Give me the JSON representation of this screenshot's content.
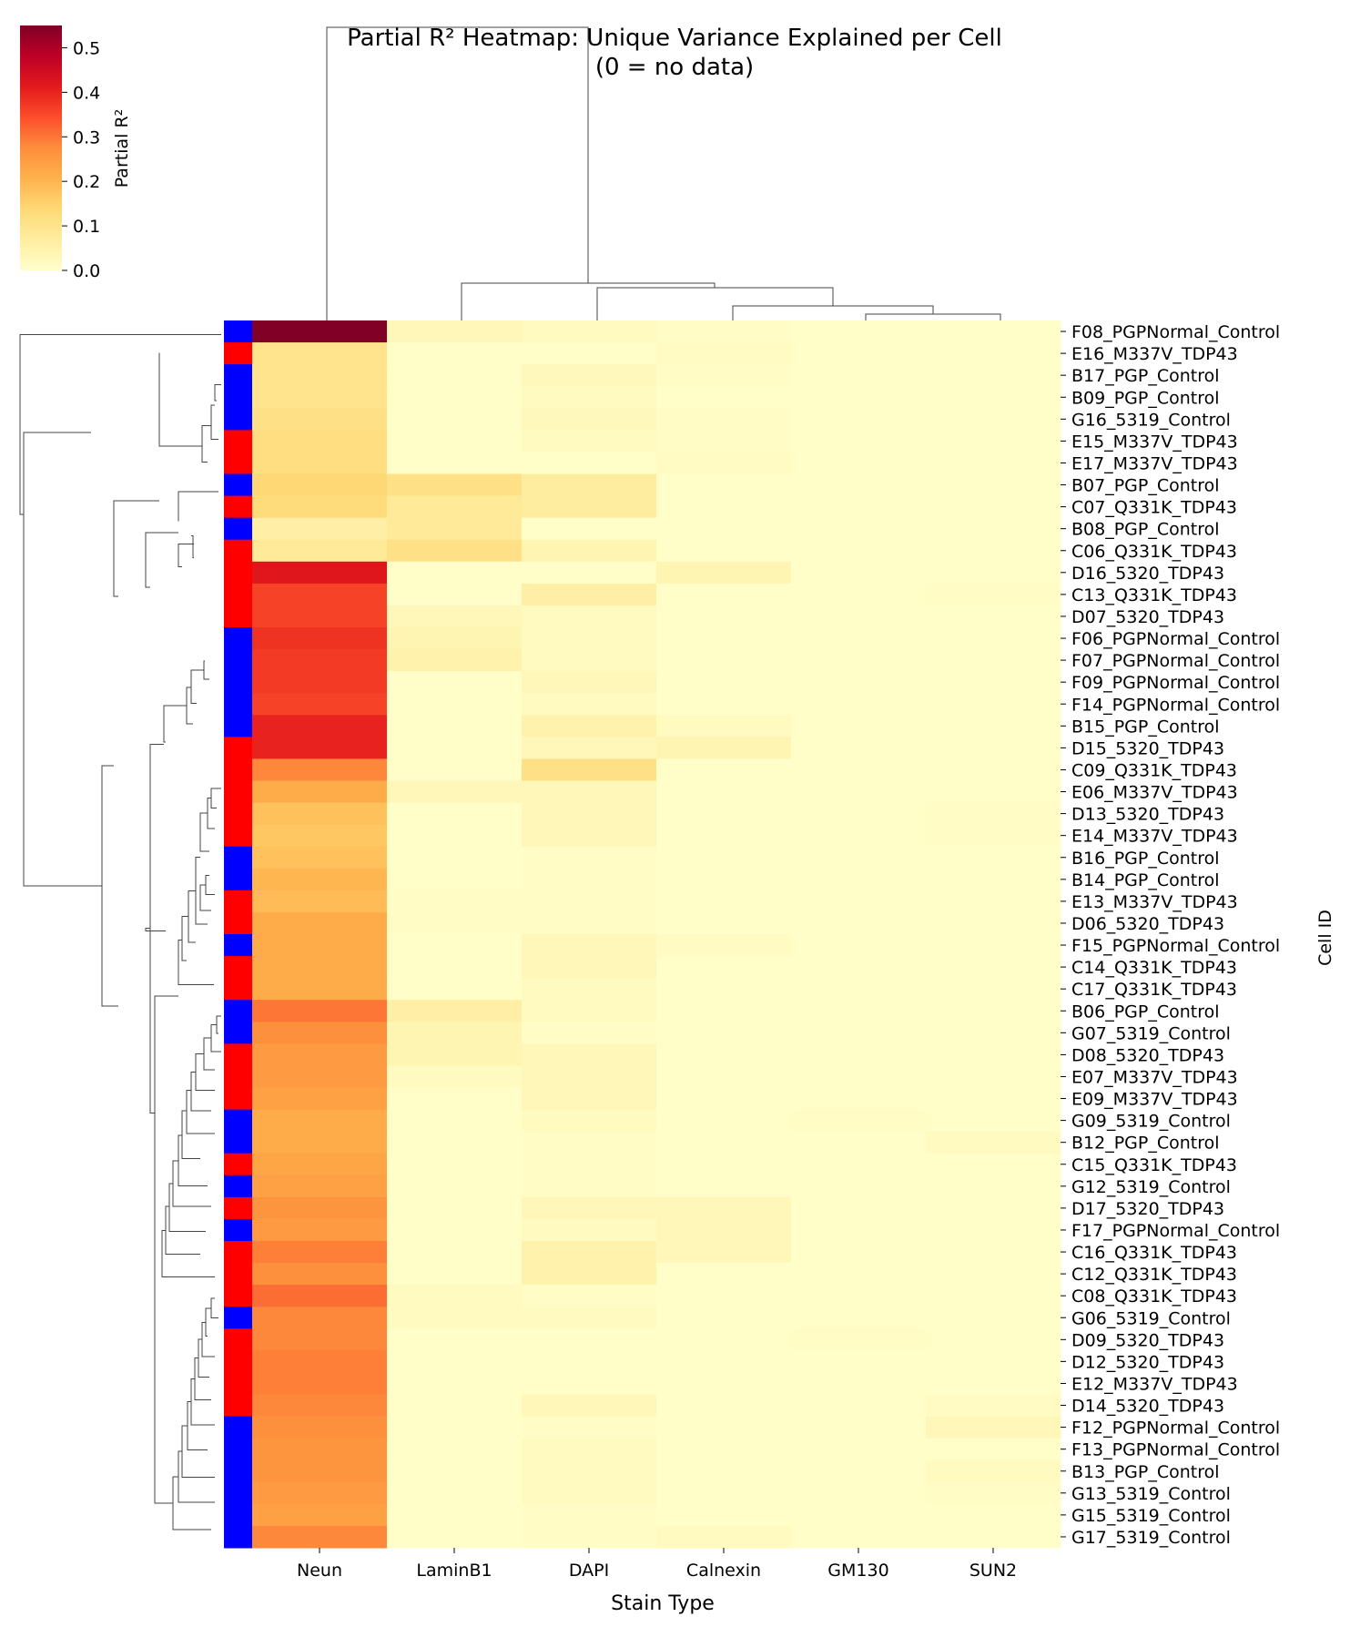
{
  "chart_data": {
    "type": "heatmap",
    "title": "Partial R² Heatmap: Unique Variance Explained per Cell",
    "subtitle": "(0 = no data)",
    "xlabel": "Stain Type",
    "ylabel": "Cell ID",
    "colorbar": {
      "label": "Partial R²",
      "range": [
        0.0,
        0.55
      ],
      "ticks": [
        "0.0",
        "0.1",
        "0.2",
        "0.3",
        "0.4",
        "0.5"
      ],
      "colormap": "YlOrRd"
    },
    "columns": [
      "Neun",
      "LaminB1",
      "DAPI",
      "Calnexin",
      "GM130",
      "SUN2"
    ],
    "row_group_colors": {
      "TDP43": "#ff0000",
      "Control": "#0000ff"
    },
    "rows": [
      {
        "label": "F08_PGPNormal_Control",
        "group": "Control",
        "values": [
          0.55,
          0.03,
          0.02,
          0.01,
          0.005,
          0.005
        ]
      },
      {
        "label": "E16_M337V_TDP43",
        "group": "TDP43",
        "values": [
          0.1,
          0.005,
          0.005,
          0.015,
          0.005,
          0.005
        ]
      },
      {
        "label": "B17_PGP_Control",
        "group": "Control",
        "values": [
          0.1,
          0.005,
          0.025,
          0.01,
          0.005,
          0.005
        ]
      },
      {
        "label": "B09_PGP_Control",
        "group": "Control",
        "values": [
          0.1,
          0.005,
          0.02,
          0.005,
          0.005,
          0.005
        ]
      },
      {
        "label": "G16_5319_Control",
        "group": "Control",
        "values": [
          0.11,
          0.005,
          0.025,
          0.01,
          0.005,
          0.005
        ]
      },
      {
        "label": "E15_M337V_TDP43",
        "group": "TDP43",
        "values": [
          0.12,
          0.005,
          0.02,
          0.01,
          0.005,
          0.005
        ]
      },
      {
        "label": "E17_M337V_TDP43",
        "group": "TDP43",
        "values": [
          0.12,
          0.005,
          0.005,
          0.015,
          0.005,
          0.005
        ]
      },
      {
        "label": "B07_PGP_Control",
        "group": "Control",
        "values": [
          0.14,
          0.11,
          0.07,
          0.005,
          0.005,
          0.005
        ]
      },
      {
        "label": "C07_Q331K_TDP43",
        "group": "TDP43",
        "values": [
          0.13,
          0.08,
          0.07,
          0.005,
          0.005,
          0.005
        ]
      },
      {
        "label": "B08_PGP_Control",
        "group": "Control",
        "values": [
          0.06,
          0.08,
          0.005,
          0.005,
          0.005,
          0.005
        ]
      },
      {
        "label": "C06_Q331K_TDP43",
        "group": "TDP43",
        "values": [
          0.08,
          0.11,
          0.04,
          0.005,
          0.005,
          0.005
        ]
      },
      {
        "label": "D16_5320_TDP43",
        "group": "TDP43",
        "values": [
          0.42,
          0.005,
          0.005,
          0.04,
          0.005,
          0.005
        ]
      },
      {
        "label": "C13_Q331K_TDP43",
        "group": "TDP43",
        "values": [
          0.36,
          0.005,
          0.06,
          0.005,
          0.005,
          0.01
        ]
      },
      {
        "label": "D07_5320_TDP43",
        "group": "TDP43",
        "values": [
          0.36,
          0.03,
          0.02,
          0.005,
          0.005,
          0.005
        ]
      },
      {
        "label": "F06_PGPNormal_Control",
        "group": "Control",
        "values": [
          0.38,
          0.04,
          0.02,
          0.005,
          0.005,
          0.005
        ]
      },
      {
        "label": "F07_PGPNormal_Control",
        "group": "Control",
        "values": [
          0.37,
          0.05,
          0.02,
          0.005,
          0.005,
          0.005
        ]
      },
      {
        "label": "F09_PGPNormal_Control",
        "group": "Control",
        "values": [
          0.37,
          0.005,
          0.03,
          0.005,
          0.005,
          0.005
        ]
      },
      {
        "label": "F14_PGPNormal_Control",
        "group": "Control",
        "values": [
          0.36,
          0.005,
          0.02,
          0.005,
          0.005,
          0.005
        ]
      },
      {
        "label": "B15_PGP_Control",
        "group": "Control",
        "values": [
          0.4,
          0.005,
          0.05,
          0.02,
          0.005,
          0.005
        ]
      },
      {
        "label": "D15_5320_TDP43",
        "group": "TDP43",
        "values": [
          0.4,
          0.005,
          0.03,
          0.04,
          0.005,
          0.005
        ]
      },
      {
        "label": "C09_Q331K_TDP43",
        "group": "TDP43",
        "values": [
          0.28,
          0.005,
          0.11,
          0.005,
          0.005,
          0.005
        ]
      },
      {
        "label": "E06_M337V_TDP43",
        "group": "TDP43",
        "values": [
          0.22,
          0.03,
          0.03,
          0.005,
          0.005,
          0.005
        ]
      },
      {
        "label": "D13_5320_TDP43",
        "group": "TDP43",
        "values": [
          0.18,
          0.005,
          0.03,
          0.005,
          0.005,
          0.01
        ]
      },
      {
        "label": "E14_M337V_TDP43",
        "group": "TDP43",
        "values": [
          0.17,
          0.005,
          0.03,
          0.005,
          0.005,
          0.01
        ]
      },
      {
        "label": "B16_PGP_Control",
        "group": "Control",
        "values": [
          0.18,
          0.005,
          0.01,
          0.005,
          0.005,
          0.005
        ]
      },
      {
        "label": "B14_PGP_Control",
        "group": "Control",
        "values": [
          0.2,
          0.005,
          0.01,
          0.005,
          0.005,
          0.005
        ]
      },
      {
        "label": "E13_M337V_TDP43",
        "group": "TDP43",
        "values": [
          0.19,
          0.01,
          0.01,
          0.005,
          0.005,
          0.005
        ]
      },
      {
        "label": "D06_5320_TDP43",
        "group": "TDP43",
        "values": [
          0.22,
          0.01,
          0.01,
          0.005,
          0.005,
          0.005
        ]
      },
      {
        "label": "F15_PGPNormal_Control",
        "group": "Control",
        "values": [
          0.22,
          0.005,
          0.03,
          0.015,
          0.005,
          0.005
        ]
      },
      {
        "label": "C14_Q331K_TDP43",
        "group": "TDP43",
        "values": [
          0.22,
          0.005,
          0.03,
          0.005,
          0.005,
          0.005
        ]
      },
      {
        "label": "C17_Q331K_TDP43",
        "group": "TDP43",
        "values": [
          0.22,
          0.005,
          0.02,
          0.005,
          0.005,
          0.005
        ]
      },
      {
        "label": "B06_PGP_Control",
        "group": "Control",
        "values": [
          0.3,
          0.06,
          0.02,
          0.005,
          0.005,
          0.005
        ]
      },
      {
        "label": "G07_5319_Control",
        "group": "Control",
        "values": [
          0.27,
          0.04,
          0.01,
          0.005,
          0.005,
          0.005
        ]
      },
      {
        "label": "D08_5320_TDP43",
        "group": "TDP43",
        "values": [
          0.25,
          0.04,
          0.03,
          0.005,
          0.005,
          0.005
        ]
      },
      {
        "label": "E07_M337V_TDP43",
        "group": "TDP43",
        "values": [
          0.25,
          0.02,
          0.03,
          0.005,
          0.005,
          0.005
        ]
      },
      {
        "label": "E09_M337V_TDP43",
        "group": "TDP43",
        "values": [
          0.24,
          0.005,
          0.03,
          0.005,
          0.005,
          0.005
        ]
      },
      {
        "label": "G09_5319_Control",
        "group": "Control",
        "values": [
          0.22,
          0.005,
          0.02,
          0.005,
          0.01,
          0.005
        ]
      },
      {
        "label": "B12_PGP_Control",
        "group": "Control",
        "values": [
          0.22,
          0.005,
          0.01,
          0.005,
          0.005,
          0.02
        ]
      },
      {
        "label": "C15_Q331K_TDP43",
        "group": "TDP43",
        "values": [
          0.23,
          0.005,
          0.01,
          0.005,
          0.005,
          0.005
        ]
      },
      {
        "label": "G12_5319_Control",
        "group": "Control",
        "values": [
          0.24,
          0.005,
          0.01,
          0.005,
          0.005,
          0.005
        ]
      },
      {
        "label": "D17_5320_TDP43",
        "group": "TDP43",
        "values": [
          0.26,
          0.005,
          0.03,
          0.03,
          0.005,
          0.005
        ]
      },
      {
        "label": "F17_PGPNormal_Control",
        "group": "Control",
        "values": [
          0.25,
          0.005,
          0.02,
          0.03,
          0.005,
          0.005
        ]
      },
      {
        "label": "C16_Q331K_TDP43",
        "group": "TDP43",
        "values": [
          0.29,
          0.005,
          0.05,
          0.03,
          0.005,
          0.005
        ]
      },
      {
        "label": "C12_Q331K_TDP43",
        "group": "TDP43",
        "values": [
          0.27,
          0.005,
          0.05,
          0.005,
          0.005,
          0.005
        ]
      },
      {
        "label": "C08_Q331K_TDP43",
        "group": "TDP43",
        "values": [
          0.31,
          0.02,
          0.01,
          0.005,
          0.005,
          0.005
        ]
      },
      {
        "label": "G06_5319_Control",
        "group": "Control",
        "values": [
          0.28,
          0.02,
          0.02,
          0.005,
          0.005,
          0.005
        ]
      },
      {
        "label": "D09_5320_TDP43",
        "group": "TDP43",
        "values": [
          0.28,
          0.005,
          0.005,
          0.005,
          0.01,
          0.005
        ]
      },
      {
        "label": "D12_5320_TDP43",
        "group": "TDP43",
        "values": [
          0.29,
          0.005,
          0.005,
          0.005,
          0.005,
          0.005
        ]
      },
      {
        "label": "E12_M337V_TDP43",
        "group": "TDP43",
        "values": [
          0.29,
          0.005,
          0.005,
          0.005,
          0.005,
          0.005
        ]
      },
      {
        "label": "D14_5320_TDP43",
        "group": "TDP43",
        "values": [
          0.28,
          0.005,
          0.03,
          0.005,
          0.005,
          0.015
        ]
      },
      {
        "label": "F12_PGPNormal_Control",
        "group": "Control",
        "values": [
          0.27,
          0.005,
          0.01,
          0.005,
          0.005,
          0.03
        ]
      },
      {
        "label": "F13_PGPNormal_Control",
        "group": "Control",
        "values": [
          0.26,
          0.005,
          0.02,
          0.005,
          0.005,
          0.005
        ]
      },
      {
        "label": "B13_PGP_Control",
        "group": "Control",
        "values": [
          0.26,
          0.005,
          0.02,
          0.005,
          0.005,
          0.02
        ]
      },
      {
        "label": "G13_5319_Control",
        "group": "Control",
        "values": [
          0.25,
          0.005,
          0.02,
          0.005,
          0.005,
          0.01
        ]
      },
      {
        "label": "G15_5319_Control",
        "group": "Control",
        "values": [
          0.24,
          0.005,
          0.01,
          0.005,
          0.005,
          0.005
        ]
      },
      {
        "label": "G17_5319_Control",
        "group": "Control",
        "values": [
          0.28,
          0.005,
          0.01,
          0.02,
          0.005,
          0.005
        ]
      }
    ]
  }
}
